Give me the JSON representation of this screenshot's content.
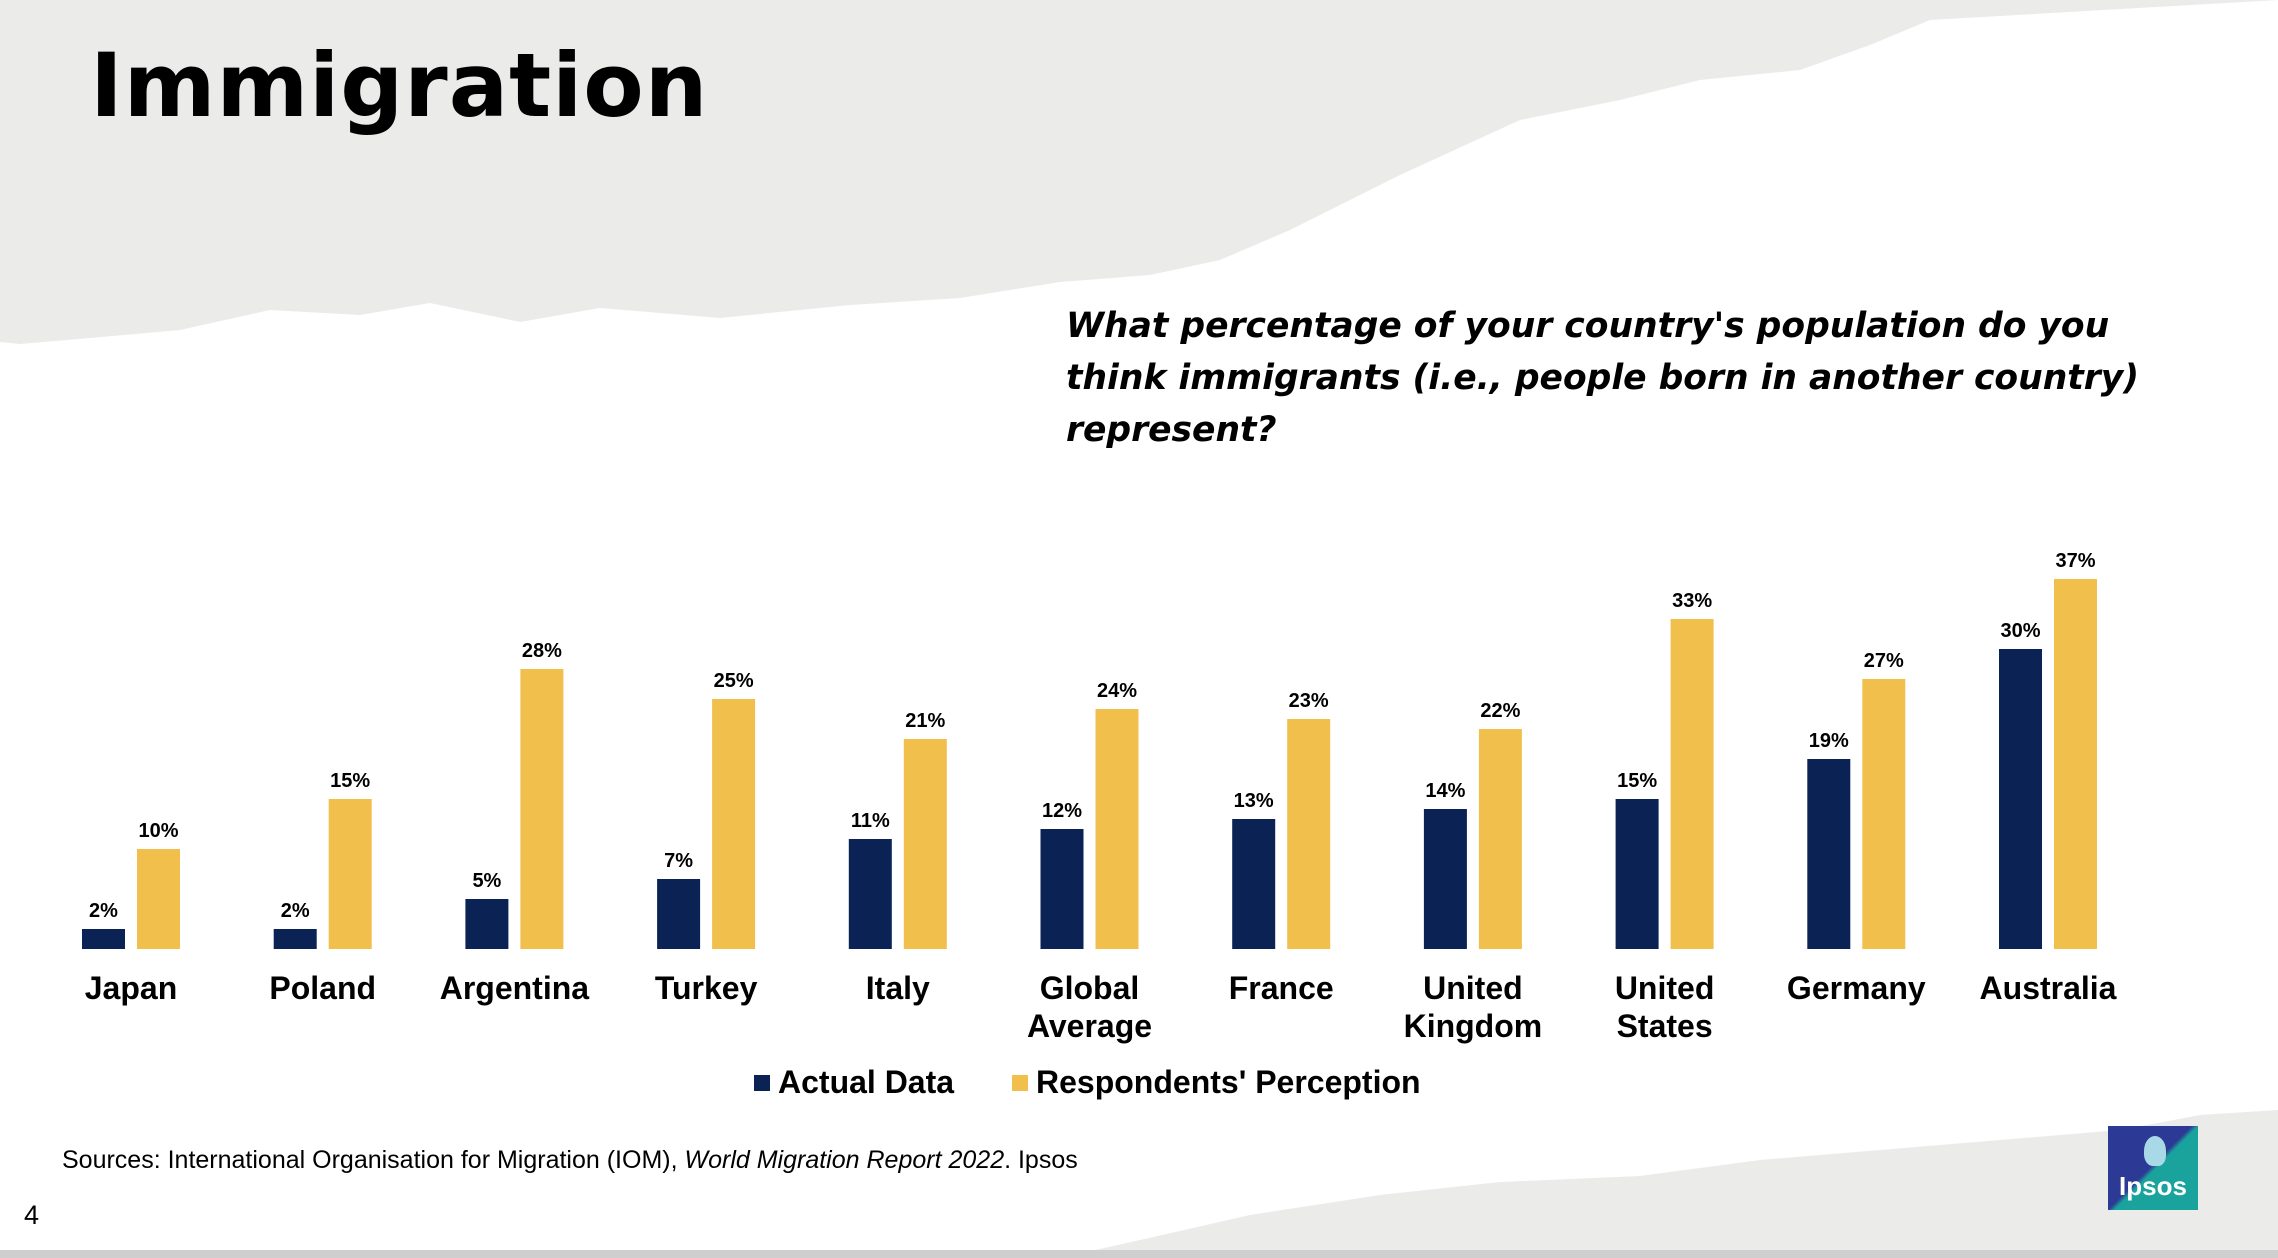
{
  "header": {
    "title": "Immigration"
  },
  "question": "What percentage of your country's population do you think immigrants (i.e., people born in another country) represent?",
  "chart_data": {
    "type": "bar",
    "categories": [
      [
        "Japan"
      ],
      [
        "Poland"
      ],
      [
        "Argentina"
      ],
      [
        "Turkey"
      ],
      [
        "Italy"
      ],
      [
        "Global",
        "Average"
      ],
      [
        "France"
      ],
      [
        "United",
        "Kingdom"
      ],
      [
        "United",
        "States"
      ],
      [
        "Germany"
      ],
      [
        "Australia"
      ]
    ],
    "series": [
      {
        "name": "Actual Data",
        "color": "#0b2254",
        "values": [
          2,
          2,
          5,
          7,
          11,
          12,
          13,
          14,
          15,
          19,
          30
        ]
      },
      {
        "name": "Respondents' Perception",
        "color": "#f0bf4c",
        "values": [
          10,
          15,
          28,
          25,
          21,
          24,
          23,
          22,
          33,
          27,
          37
        ]
      }
    ],
    "value_suffix": "%",
    "ylim": [
      0,
      40
    ],
    "grid": false,
    "legend": "bottom"
  },
  "legend": {
    "actual": "Actual Data",
    "perception": "Respondents' Perception",
    "actual_color": "#0b2254",
    "perception_color": "#f0bf4c"
  },
  "footer": {
    "source_prefix": "Sources: International Organisation for Migration (IOM), ",
    "source_italic": "World Migration Report 2022",
    "source_suffix": ". Ipsos",
    "page_number": "4",
    "logo_text": "Ipsos"
  }
}
